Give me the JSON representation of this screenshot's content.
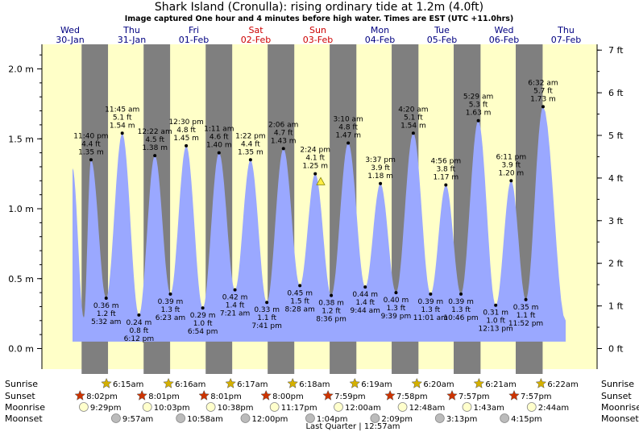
{
  "title": "Shark Island (Cronulla): rising  ordinary tide at 1.2m (4.0ft)",
  "subtitle": "Image captured One hour and 4 minutes before high water. Times are EST (UTC +11.0hrs)",
  "days": [
    {
      "dow": "Wed",
      "date": "30-Jan",
      "weekend": false
    },
    {
      "dow": "Thu",
      "date": "31-Jan",
      "weekend": false
    },
    {
      "dow": "Fri",
      "date": "01-Feb",
      "weekend": false
    },
    {
      "dow": "Sat",
      "date": "02-Feb",
      "weekend": true
    },
    {
      "dow": "Sun",
      "date": "03-Feb",
      "weekend": true
    },
    {
      "dow": "Mon",
      "date": "04-Feb",
      "weekend": false
    },
    {
      "dow": "Tue",
      "date": "05-Feb",
      "weekend": false
    },
    {
      "dow": "Wed",
      "date": "06-Feb",
      "weekend": false
    },
    {
      "dow": "Thu",
      "date": "07-Feb",
      "weekend": false
    }
  ],
  "colors": {
    "day_bg": "#ffffc8",
    "night_bg": "#7f7f7f",
    "tide_fill": "#9aa8ff",
    "weekday_text": "#000080",
    "weekend_text": "#cc0000",
    "sun_star": "#d4b000",
    "sunset_star": "#cc3300"
  },
  "chart_data": {
    "type": "area",
    "y_unit_left": "m",
    "y_unit_right": "ft",
    "ylim": [
      -0.09,
      2.18
    ],
    "left_ticks": [
      "0.0 m",
      "0.5 m",
      "1.0 m",
      "1.5 m",
      "2.0 m"
    ],
    "left_tick_values": [
      0.0,
      0.5,
      1.0,
      1.5,
      2.0
    ],
    "right_ticks": [
      "0 ft",
      "1 ft",
      "2 ft",
      "3 ft",
      "4 ft",
      "5 ft",
      "6 ft",
      "7 ft"
    ],
    "right_tick_values": [
      0,
      1,
      2,
      3,
      4,
      5,
      6,
      7
    ],
    "current_level_m": 1.2,
    "tides": [
      {
        "type": "high",
        "time": "11:40 pm",
        "ft": "4.4 ft",
        "m": "1.35 m",
        "height": 1.35
      },
      {
        "type": "low",
        "time": "5:32 am",
        "ft": "1.2 ft",
        "m": "0.36 m",
        "height": 0.36
      },
      {
        "type": "high",
        "time": "11:45 am",
        "ft": "5.1 ft",
        "m": "1.54 m",
        "height": 1.54
      },
      {
        "type": "low",
        "time": "6:12 pm",
        "ft": "0.8 ft",
        "m": "0.24 m",
        "height": 0.24
      },
      {
        "type": "high",
        "time": "12:22 am",
        "ft": "4.5 ft",
        "m": "1.38 m",
        "height": 1.38
      },
      {
        "type": "low",
        "time": "6:23 am",
        "ft": "1.3 ft",
        "m": "0.39 m",
        "height": 0.39
      },
      {
        "type": "high",
        "time": "12:30 pm",
        "ft": "4.8 ft",
        "m": "1.45 m",
        "height": 1.45
      },
      {
        "type": "low",
        "time": "6:54 pm",
        "ft": "1.0 ft",
        "m": "0.29 m",
        "height": 0.29
      },
      {
        "type": "high",
        "time": "1:11 am",
        "ft": "4.6 ft",
        "m": "1.40 m",
        "height": 1.4
      },
      {
        "type": "low",
        "time": "7:21 am",
        "ft": "1.4 ft",
        "m": "0.42 m",
        "height": 0.42
      },
      {
        "type": "high",
        "time": "1:22 pm",
        "ft": "4.4 ft",
        "m": "1.35 m",
        "height": 1.35
      },
      {
        "type": "low",
        "time": "7:41 pm",
        "ft": "1.1 ft",
        "m": "0.33 m",
        "height": 0.33
      },
      {
        "type": "high",
        "time": "2:06 am",
        "ft": "4.7 ft",
        "m": "1.43 m",
        "height": 1.43
      },
      {
        "type": "low",
        "time": "8:28 am",
        "ft": "1.5 ft",
        "m": "0.45 m",
        "height": 0.45
      },
      {
        "type": "high",
        "time": "2:24 pm",
        "ft": "4.1 ft",
        "m": "1.25 m",
        "height": 1.25
      },
      {
        "type": "low",
        "time": "8:36 pm",
        "ft": "1.2 ft",
        "m": "0.38 m",
        "height": 0.38
      },
      {
        "type": "high",
        "time": "3:10 am",
        "ft": "4.8 ft",
        "m": "1.47 m",
        "height": 1.47
      },
      {
        "type": "low",
        "time": "9:44 am",
        "ft": "1.4 ft",
        "m": "0.44 m",
        "height": 0.44
      },
      {
        "type": "high",
        "time": "3:37 pm",
        "ft": "3.9 ft",
        "m": "1.18 m",
        "height": 1.18
      },
      {
        "type": "low",
        "time": "9:39 pm",
        "ft": "1.3 ft",
        "m": "0.40 m",
        "height": 0.4
      },
      {
        "type": "high",
        "time": "4:20 am",
        "ft": "5.1 ft",
        "m": "1.54 m",
        "height": 1.54
      },
      {
        "type": "low",
        "time": "11:01 am",
        "ft": "1.3 ft",
        "m": "0.39 m",
        "height": 0.39
      },
      {
        "type": "high",
        "time": "4:56 pm",
        "ft": "3.8 ft",
        "m": "1.17 m",
        "height": 1.17
      },
      {
        "type": "low",
        "time": "10:46 pm",
        "ft": "1.3 ft",
        "m": "0.39 m",
        "height": 0.39
      },
      {
        "type": "high",
        "time": "5:29 am",
        "ft": "5.3 ft",
        "m": "1.63 m",
        "height": 1.63
      },
      {
        "type": "low",
        "time": "12:13 pm",
        "ft": "1.0 ft",
        "m": "0.31 m",
        "height": 0.31
      },
      {
        "type": "high",
        "time": "6:11 pm",
        "ft": "3.9 ft",
        "m": "1.20 m",
        "height": 1.2
      },
      {
        "type": "low",
        "time": "11:52 pm",
        "ft": "1.1 ft",
        "m": "0.35 m",
        "height": 0.35
      },
      {
        "type": "high",
        "time": "6:32 am",
        "ft": "5.7 ft",
        "m": "1.73 m",
        "height": 1.73
      }
    ]
  },
  "astro": {
    "row_labels": {
      "sunrise": "Sunrise",
      "sunset": "Sunset",
      "moonrise": "Moonrise",
      "moonset": "Moonset"
    },
    "sunrise": [
      "6:15am",
      "6:16am",
      "6:17am",
      "6:18am",
      "6:19am",
      "6:20am",
      "6:21am",
      "6:22am"
    ],
    "sunset": [
      "8:02pm",
      "8:01pm",
      "8:01pm",
      "8:00pm",
      "7:59pm",
      "7:58pm",
      "7:57pm",
      "7:57pm"
    ],
    "moonrise": [
      "9:29pm",
      "10:03pm",
      "10:38pm",
      "11:17pm",
      "12:00am",
      "12:48am",
      "1:43am",
      "2:44am"
    ],
    "moonset": [
      "9:57am",
      "10:58am",
      "12:00pm",
      "1:04pm",
      "2:09pm",
      "3:13pm",
      "4:15pm"
    ],
    "moon_phase": "Last Quarter | 12:57am"
  }
}
